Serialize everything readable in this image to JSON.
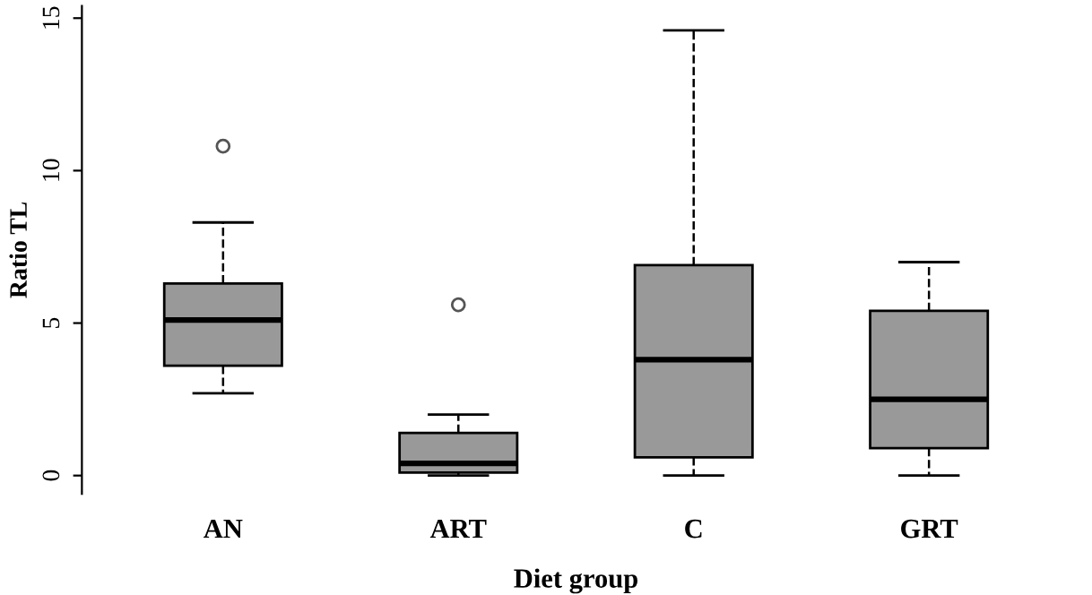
{
  "chart_data": {
    "type": "box",
    "xlabel": "Diet group",
    "ylabel": "Ratio TL",
    "categories": [
      "AN",
      "ART",
      "C",
      "GRT"
    ],
    "color": "#999999",
    "boxes": [
      {
        "low": 2.7,
        "q1": 3.6,
        "median": 5.1,
        "q3": 6.3,
        "high": 8.3,
        "outliers": [
          10.8
        ]
      },
      {
        "low": 0.0,
        "q1": 0.1,
        "median": 0.4,
        "q3": 1.4,
        "high": 2.0,
        "outliers": [
          5.6
        ]
      },
      {
        "low": 0.0,
        "q1": 0.6,
        "median": 3.8,
        "q3": 6.9,
        "high": 14.6
      },
      {
        "low": 0.0,
        "q1": 0.9,
        "median": 2.5,
        "q3": 5.4,
        "high": 7.0
      }
    ],
    "ylim": [
      -0.6,
      15.4
    ],
    "yticks": [
      0,
      5,
      10,
      15
    ],
    "grid": false
  }
}
